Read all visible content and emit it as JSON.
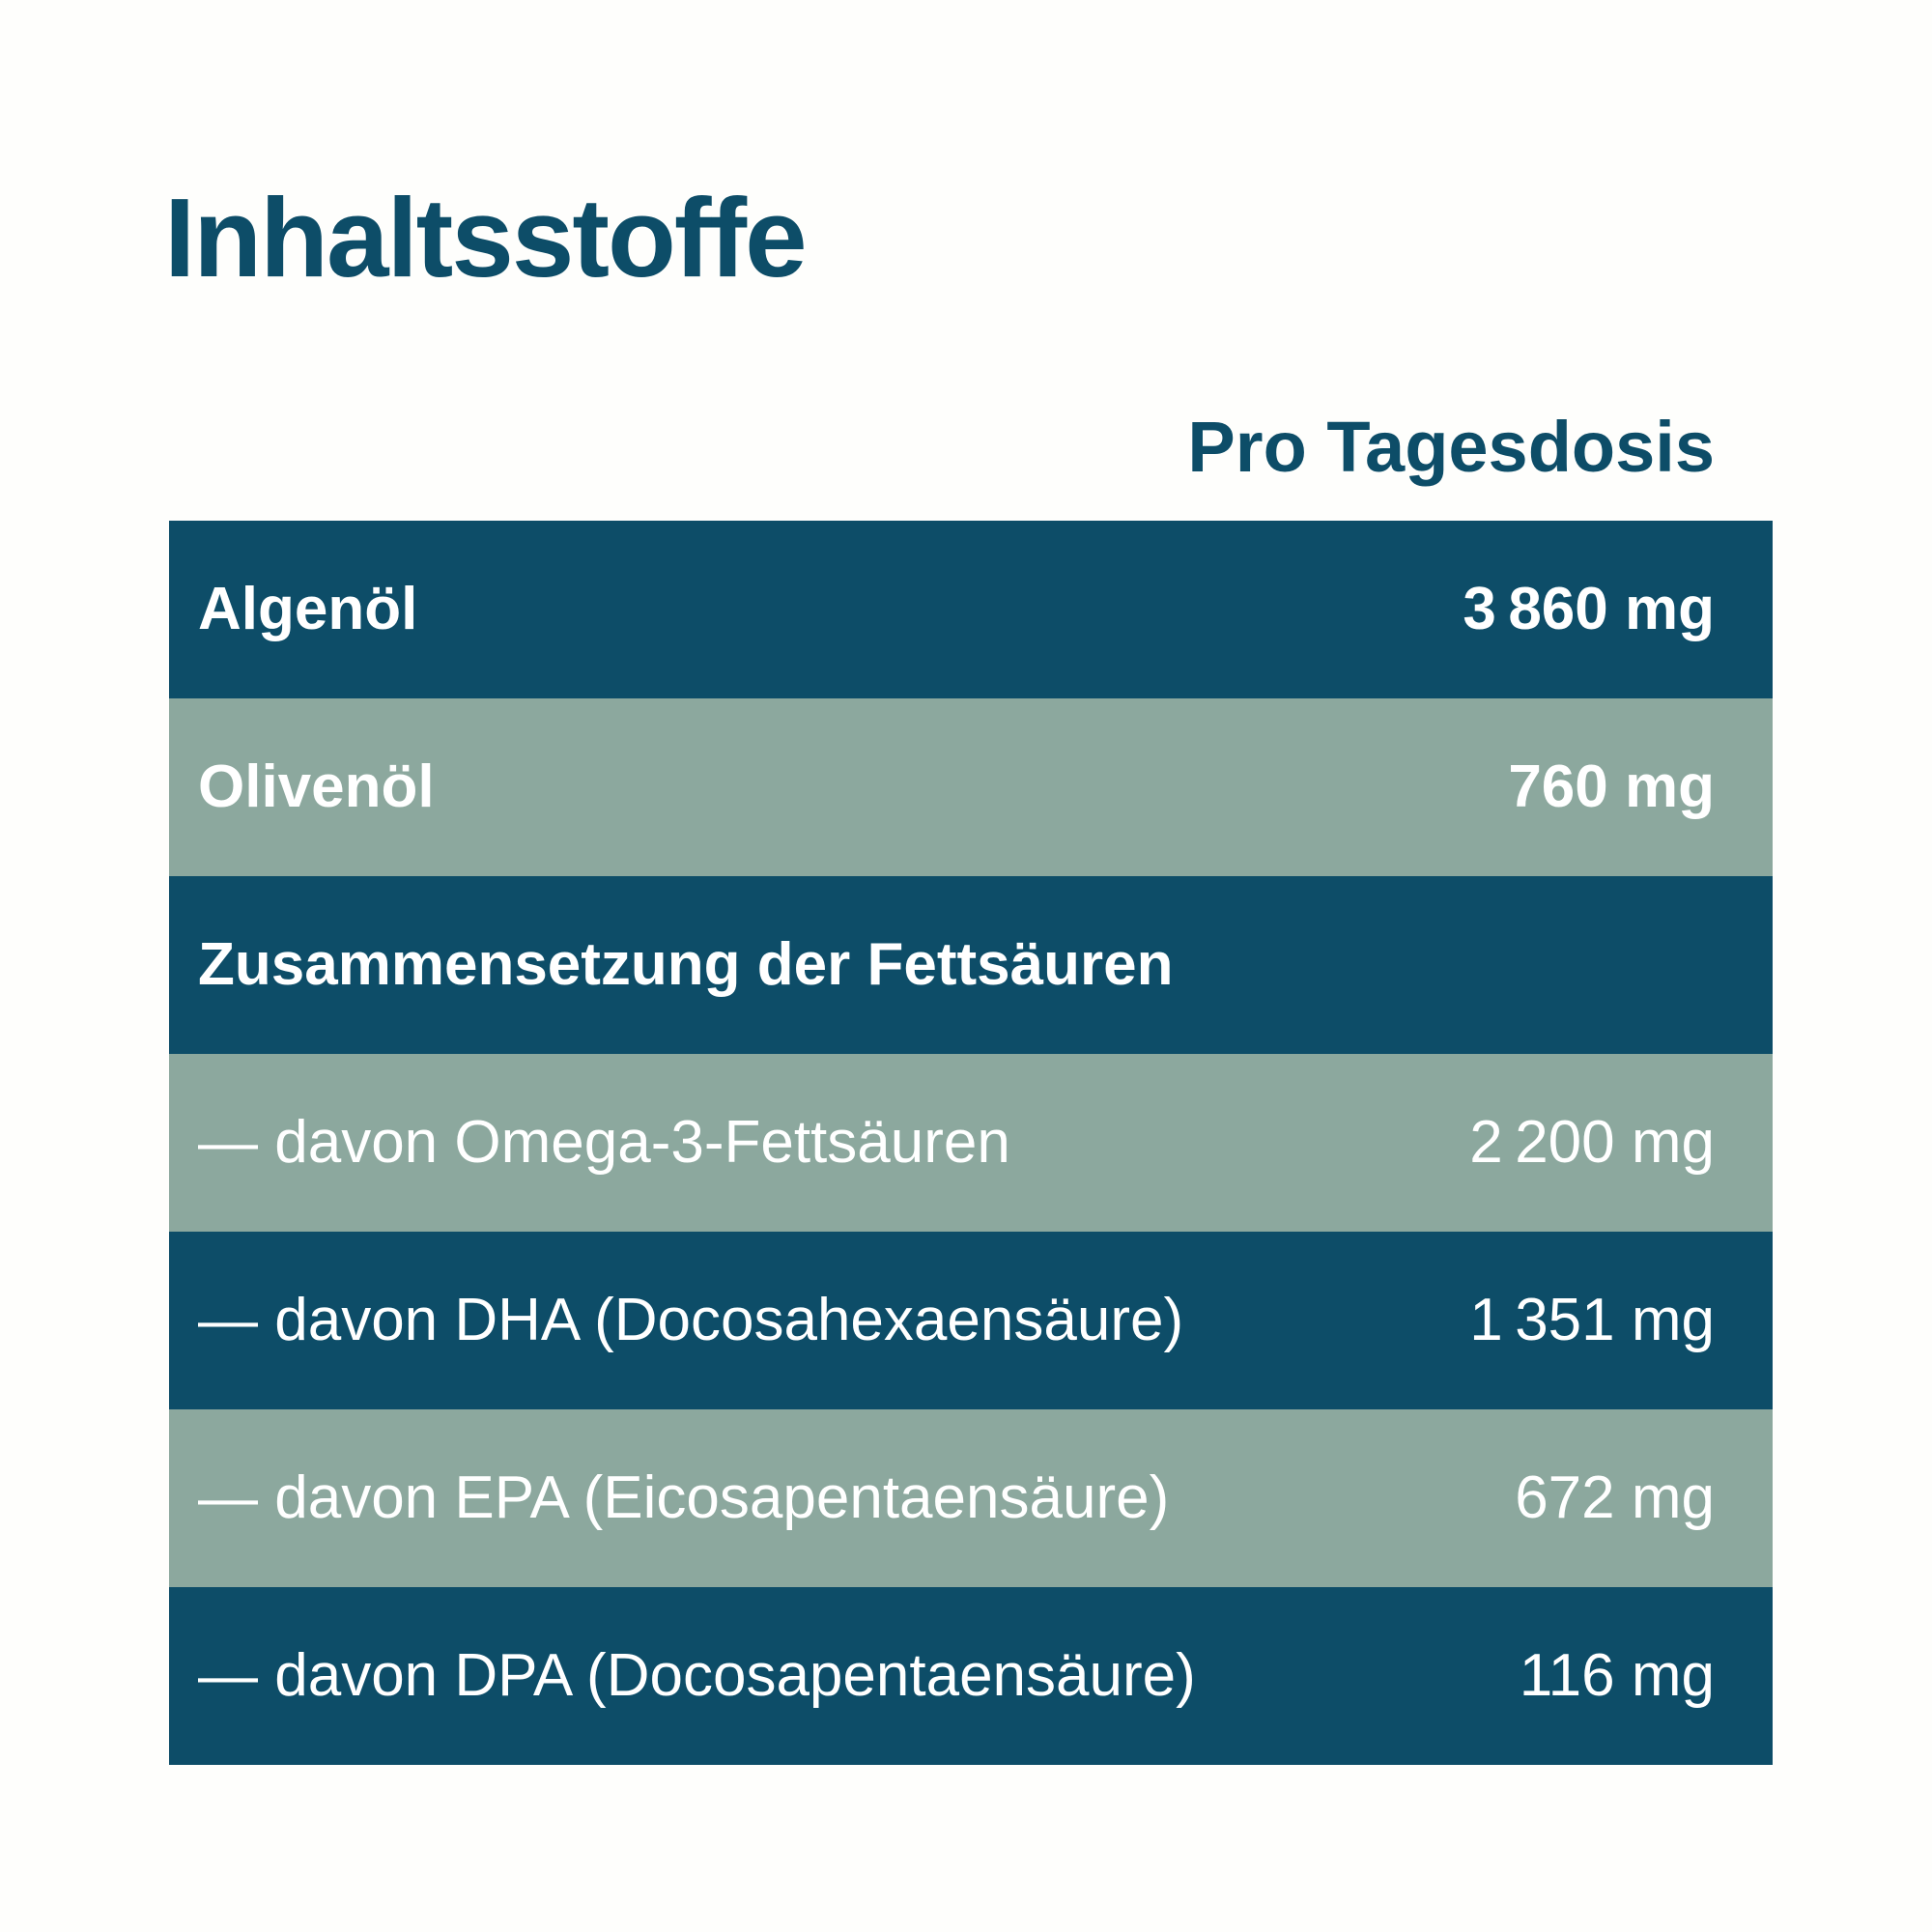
{
  "title": "Inhaltsstoffe",
  "column_header": "Pro Tagesdosis",
  "colors": {
    "dark_row": "#0d4d68",
    "green_row": "#8ca89e",
    "row_text": "#ffffff",
    "heading_text": "#0d4d68",
    "background": "#fefefc"
  },
  "table": {
    "rows": [
      {
        "label": "Algenöl",
        "value": "3 860 mg",
        "style": "dark",
        "bold": true
      },
      {
        "label": "Olivenöl",
        "value": "760 mg",
        "style": "green",
        "bold": true
      },
      {
        "label": "Zusammensetzung der Fettsäuren",
        "value": "",
        "style": "dark",
        "bold": true
      },
      {
        "label": "— davon Omega-3-Fettsäuren",
        "value": "2 200 mg",
        "style": "green",
        "bold": false
      },
      {
        "label": "— davon DHA (Docosahexaensäure)",
        "value": "1 351 mg",
        "style": "dark",
        "bold": false
      },
      {
        "label": "— davon EPA (Eicosapentaensäure)",
        "value": "672 mg",
        "style": "green",
        "bold": false
      },
      {
        "label": "— davon DPA (Docosapentaensäure)",
        "value": "116 mg",
        "style": "dark",
        "bold": false
      }
    ]
  }
}
